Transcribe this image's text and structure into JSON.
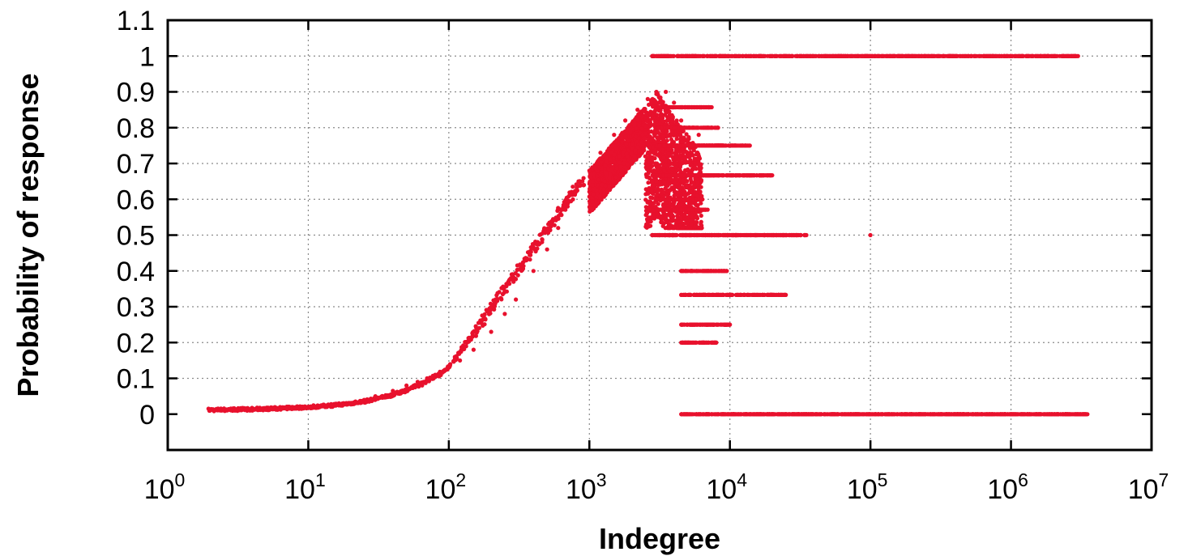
{
  "chart_data": {
    "type": "scatter",
    "xlabel": "Indegree",
    "ylabel": "Probability of response",
    "x_scale": "log",
    "xlim": [
      1,
      10000000
    ],
    "ylim": [
      -0.1,
      1.1
    ],
    "x_tick_values": [
      1,
      10,
      100,
      1000,
      10000,
      100000,
      1000000,
      10000000
    ],
    "x_tick_labels": [
      {
        "base": "10",
        "exp": "0"
      },
      {
        "base": "10",
        "exp": "1"
      },
      {
        "base": "10",
        "exp": "2"
      },
      {
        "base": "10",
        "exp": "3"
      },
      {
        "base": "10",
        "exp": "4"
      },
      {
        "base": "10",
        "exp": "5"
      },
      {
        "base": "10",
        "exp": "6"
      },
      {
        "base": "10",
        "exp": "7"
      }
    ],
    "y_ticks": [
      0,
      0.1,
      0.2,
      0.3,
      0.4,
      0.5,
      0.6,
      0.7,
      0.8,
      0.9,
      1,
      1.1
    ],
    "y_tick_labels": [
      "0",
      "0.1",
      "0.2",
      "0.3",
      "0.4",
      "0.5",
      "0.6",
      "0.7",
      "0.8",
      "0.9",
      "1",
      "1.1"
    ],
    "grid": true,
    "marker_color": "#e8112d",
    "series": [
      {
        "values_description_x_y": [
          [
            2,
            0.01
          ],
          [
            3,
            0.01
          ],
          [
            4,
            0.01
          ],
          [
            5,
            0.012
          ],
          [
            6,
            0.013
          ],
          [
            7,
            0.015
          ],
          [
            8,
            0.016
          ],
          [
            10,
            0.02
          ],
          [
            12,
            0.022
          ],
          [
            15,
            0.025
          ],
          [
            20,
            0.03
          ],
          [
            25,
            0.04
          ],
          [
            30,
            0.05
          ],
          [
            40,
            0.065
          ],
          [
            50,
            0.08
          ],
          [
            60,
            0.09
          ],
          [
            70,
            0.1
          ],
          [
            80,
            0.11
          ],
          [
            100,
            0.13
          ],
          [
            120,
            0.15
          ],
          [
            150,
            0.18
          ],
          [
            200,
            0.23
          ],
          [
            250,
            0.28
          ],
          [
            300,
            0.32
          ],
          [
            400,
            0.4
          ],
          [
            500,
            0.46
          ],
          [
            600,
            0.52
          ],
          [
            700,
            0.58
          ],
          [
            800,
            0.62
          ],
          [
            1000,
            0.68
          ],
          [
            1200,
            0.73
          ],
          [
            1500,
            0.78
          ],
          [
            1800,
            0.82
          ],
          [
            2200,
            0.85
          ],
          [
            2600,
            0.88
          ],
          [
            3000,
            0.9
          ],
          [
            3500,
            0.9
          ],
          [
            4000,
            0.87
          ],
          [
            4500,
            0.82
          ],
          [
            5000,
            0.8
          ],
          [
            6000,
            0.78
          ],
          [
            2500,
            0.72
          ],
          [
            3000,
            0.65
          ],
          [
            3500,
            0.6
          ],
          [
            4000,
            0.57
          ],
          [
            5000,
            0.55
          ],
          [
            2800,
            1
          ],
          [
            10000,
            1
          ],
          [
            100000,
            1
          ],
          [
            1000000,
            1
          ],
          [
            3000000,
            1
          ],
          [
            2800,
            0.5
          ],
          [
            10000,
            0.5
          ],
          [
            35000,
            0.5
          ],
          [
            100000,
            0.5
          ],
          [
            3000,
            0.667
          ],
          [
            20000,
            0.667
          ],
          [
            4500,
            0.4
          ],
          [
            9500,
            0.4
          ],
          [
            4500,
            0.333
          ],
          [
            25000,
            0.333
          ],
          [
            4500,
            0.25
          ],
          [
            10000,
            0.25
          ],
          [
            4500,
            0.2
          ],
          [
            8000,
            0.2
          ],
          [
            4500,
            0
          ],
          [
            100000,
            0
          ],
          [
            1000000,
            0
          ],
          [
            3500000,
            0
          ]
        ]
      }
    ]
  }
}
